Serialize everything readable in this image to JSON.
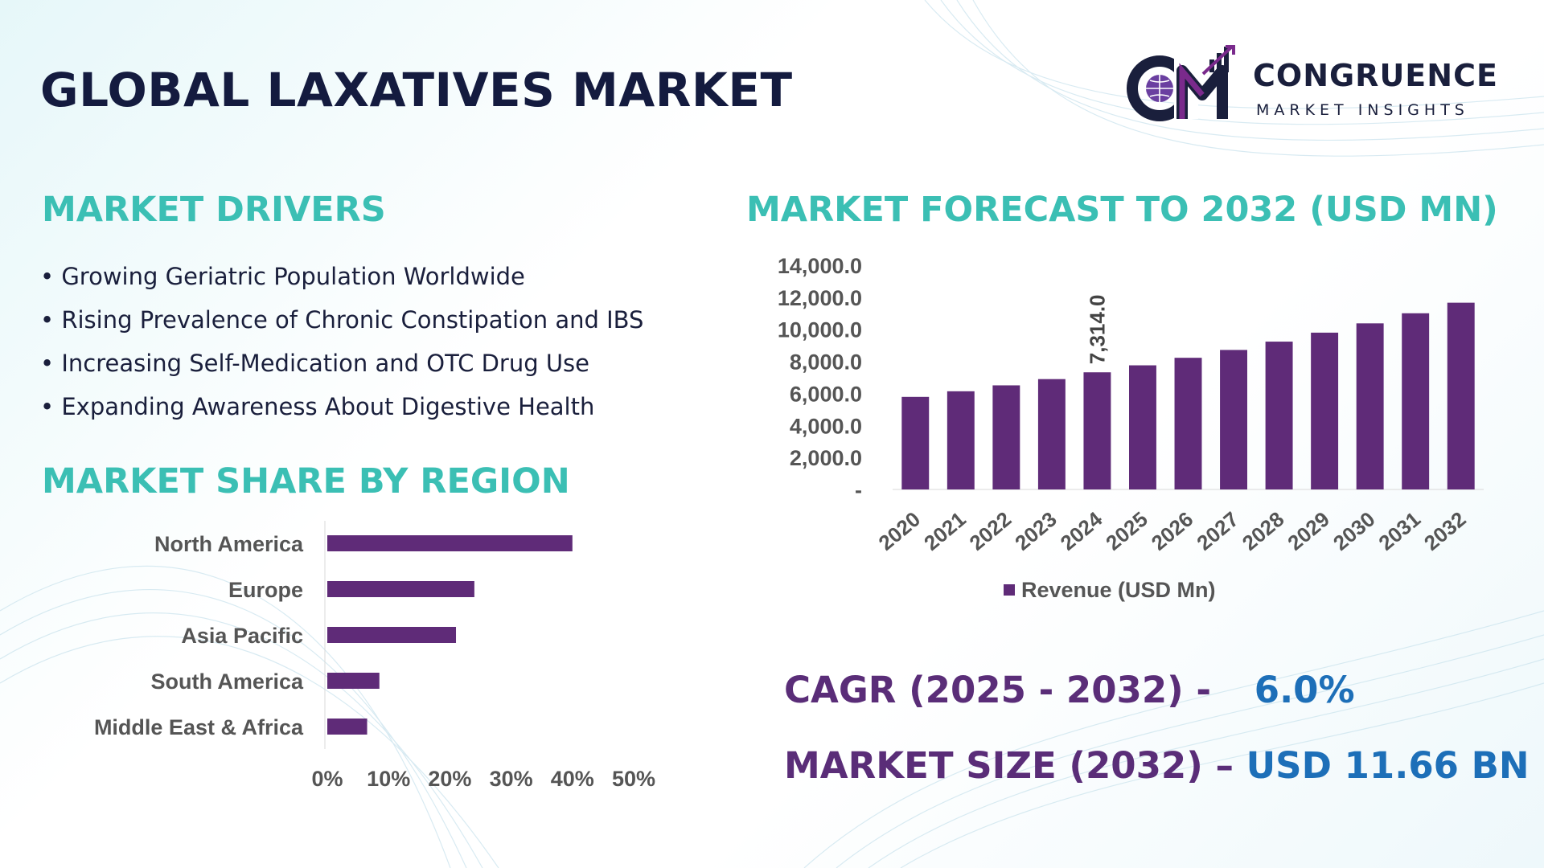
{
  "title": "GLOBAL LAXATIVES MARKET",
  "logo": {
    "name": "CONGRUENCE",
    "tagline": "MARKET INSIGHTS",
    "monogram": "CM",
    "colors": {
      "dark": "#1a1f3c",
      "accent": "#7a2a8c",
      "globe": "#6a3fa0"
    }
  },
  "drivers": {
    "heading": "MARKET DRIVERS",
    "items": [
      "Growing Geriatric Population Worldwide",
      "Rising Prevalence of Chronic Constipation and IBS",
      "Increasing Self-Medication and OTC Drug Use",
      "Expanding Awareness About Digestive Health"
    ]
  },
  "region": {
    "heading": "MARKET SHARE BY REGION"
  },
  "forecast": {
    "heading": "MARKET FORECAST TO 2032 (USD MN)"
  },
  "kpis": {
    "cagr_label": "CAGR (2025 - 2032) -",
    "cagr_value": "6.0%",
    "size_label": "MARKET SIZE (2032) –",
    "size_value": "USD 11.66 BN"
  },
  "colors": {
    "heading": "#3bbfb4",
    "bar": "#5f2b78",
    "title": "#141b3f",
    "kpi_label": "#5a2d78",
    "kpi_value": "#1d6fb8",
    "axis_text": "#555555"
  },
  "chart_data": [
    {
      "type": "bar",
      "orientation": "horizontal",
      "title": "MARKET SHARE BY REGION",
      "categories": [
        "North America",
        "Europe",
        "Asia Pacific",
        "South America",
        "Middle East & Africa"
      ],
      "values": [
        40,
        24,
        21,
        8.5,
        6.5
      ],
      "xlim": [
        0,
        50
      ],
      "xticks": [
        "0%",
        "10%",
        "20%",
        "30%",
        "40%",
        "50%"
      ],
      "grid": false
    },
    {
      "type": "bar",
      "orientation": "vertical",
      "title": "MARKET FORECAST TO 2032 (USD MN)",
      "categories": [
        "2020",
        "2021",
        "2022",
        "2023",
        "2024",
        "2025",
        "2026",
        "2027",
        "2028",
        "2029",
        "2030",
        "2031",
        "2032"
      ],
      "series": [
        {
          "name": "Revenue (USD Mn)",
          "values": [
            5780,
            6130,
            6500,
            6890,
            7314,
            7750,
            8220,
            8710,
            9230,
            9790,
            10370,
            11000,
            11660
          ]
        }
      ],
      "ylim": [
        0,
        14000
      ],
      "yticks": [
        "-",
        "2,000.0",
        "4,000.0",
        "6,000.0",
        "8,000.0",
        "10,000.0",
        "12,000.0",
        "14,000.0"
      ],
      "data_labels": [
        {
          "category": "2024",
          "text": "7,314.0"
        }
      ],
      "legend": "bottom",
      "grid": false
    }
  ]
}
